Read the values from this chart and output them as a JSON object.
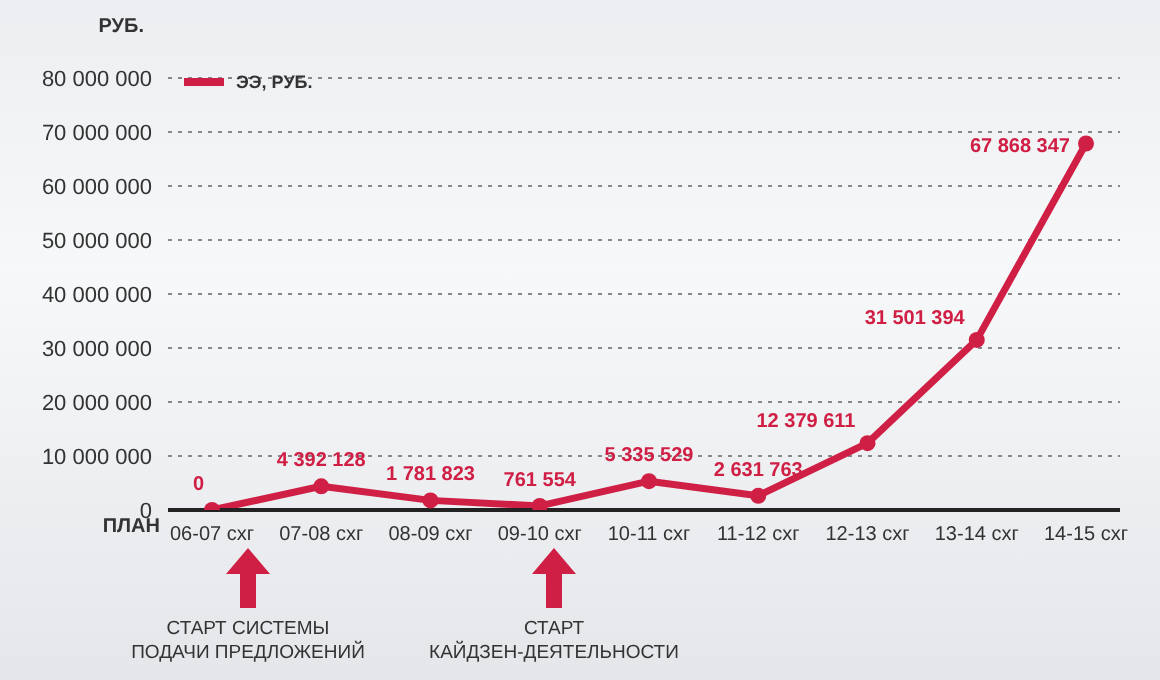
{
  "chart_data": {
    "type": "line",
    "ylabel": "РУБ.",
    "xlabel": "ПЛАН",
    "categories": [
      "06-07 схг",
      "07-08 схг",
      "08-09 схг",
      "09-10 схг",
      "10-11 схг",
      "11-12 схг",
      "12-13 схг",
      "13-14 схг",
      "14-15 схг"
    ],
    "series": [
      {
        "name": "ЭЭ, РУБ.",
        "color": "#d01f45",
        "values": [
          0,
          4392128,
          1781823,
          761554,
          5335529,
          2631763,
          12379611,
          31501394,
          67868347
        ],
        "value_labels": [
          "0",
          "4 392 128",
          "1 781 823",
          "761 554",
          "5 335 529",
          "2 631 763",
          "12 379 611",
          "31 501 394",
          "67 868 347"
        ]
      }
    ],
    "ylim": [
      0,
      80000000
    ],
    "yticks": [
      {
        "value": 0,
        "label": "0"
      },
      {
        "value": 10000000,
        "label": "10 000 000"
      },
      {
        "value": 20000000,
        "label": "20 000 000"
      },
      {
        "value": 30000000,
        "label": "30 000 000"
      },
      {
        "value": 40000000,
        "label": "40 000 000"
      },
      {
        "value": 50000000,
        "label": "50 000 000"
      },
      {
        "value": 60000000,
        "label": "60 000 000"
      },
      {
        "value": 70000000,
        "label": "70 000 000"
      },
      {
        "value": 80000000,
        "label": "80 000 000"
      }
    ],
    "grid": "y",
    "legend": "top left",
    "marker": "circle",
    "line_style": "solid",
    "annotations": [
      "СТАРТ СИСТЕМЫ\nПОДАЧИ ПРЕДЛОЖЕНИЙ",
      "СТАРТ\nКАЙДЗЕН-ДЕЯТЕЛЬНОСТИ"
    ]
  }
}
